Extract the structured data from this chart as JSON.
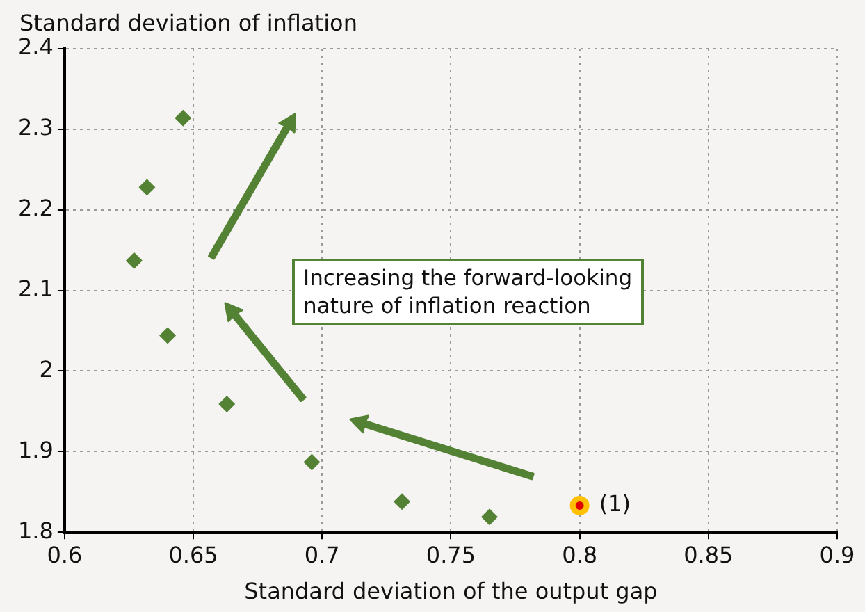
{
  "chart_data": {
    "type": "scatter",
    "xlabel": "Standard deviation of the output gap",
    "ylabel": "Standard deviation of inflation",
    "xlim": [
      0.6,
      0.9
    ],
    "xticks": [
      0.6,
      0.65,
      0.7,
      0.75,
      0.8,
      0.85,
      0.9
    ],
    "ylim": [
      1.8,
      2.4
    ],
    "yticks": [
      1.8,
      1.9,
      2,
      2.1,
      2.2,
      2.3,
      2.4
    ],
    "grid": true,
    "legend": false,
    "marker": "diamond",
    "series": [
      {
        "color": "#548235",
        "x": [
          0.646,
          0.632,
          0.627,
          0.64,
          0.663,
          0.696,
          0.731,
          0.765
        ],
        "values": [
          2.314,
          2.228,
          2.137,
          2.044,
          1.959,
          1.887,
          1.838,
          1.819
        ]
      },
      {
        "color": "#e00000",
        "marker": "circle",
        "x": [
          0.8
        ],
        "values": [
          1.833
        ]
      }
    ],
    "annotations": [
      "Increasing the forward-looking nature of inflation reaction",
      {
        "text": "(1)",
        "x": 0.8,
        "y": 1.833
      }
    ]
  }
}
